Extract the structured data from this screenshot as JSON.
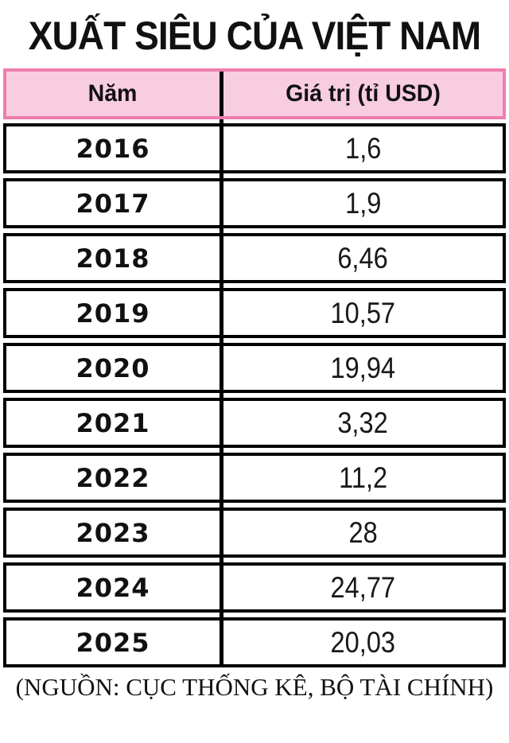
{
  "title": "XUẤT SIÊU CỦA VIỆT NAM",
  "source": "(NGUỒN: CỤC THỐNG KÊ, BỘ TÀI CHÍNH)",
  "colors": {
    "header_fill": "#F8CDE0",
    "header_border": "#EE7EAE",
    "grid_line": "#000000",
    "text": "#111111",
    "background": "#FFFFFF"
  },
  "table": {
    "columns": [
      {
        "label": "Năm"
      },
      {
        "label": "Giá trị (tỉ USD)"
      }
    ],
    "rows": [
      {
        "year": "2016",
        "value": "1,6"
      },
      {
        "year": "2017",
        "value": "1,9"
      },
      {
        "year": "2018",
        "value": "6,46"
      },
      {
        "year": "2019",
        "value": "10,57"
      },
      {
        "year": "2020",
        "value": "19,94"
      },
      {
        "year": "2021",
        "value": "3,32"
      },
      {
        "year": "2022",
        "value": "11,2"
      },
      {
        "year": "2023",
        "value": "28"
      },
      {
        "year": "2024",
        "value": "24,77"
      },
      {
        "year": "2025",
        "value": "20,03"
      }
    ]
  },
  "chart_data": {
    "type": "table",
    "title": "XUẤT SIÊU CỦA VIỆT NAM",
    "columns": [
      "Năm",
      "Giá trị (tỉ USD)"
    ],
    "categories": [
      "2016",
      "2017",
      "2018",
      "2019",
      "2020",
      "2021",
      "2022",
      "2023",
      "2024",
      "2025"
    ],
    "values": [
      1.6,
      1.9,
      6.46,
      10.57,
      19.94,
      3.32,
      11.2,
      28,
      24.77,
      20.03
    ],
    "value_unit": "tỉ USD",
    "source": "(NGUỒN: CỤC THỐNG KÊ, BỘ TÀI CHÍNH)"
  }
}
